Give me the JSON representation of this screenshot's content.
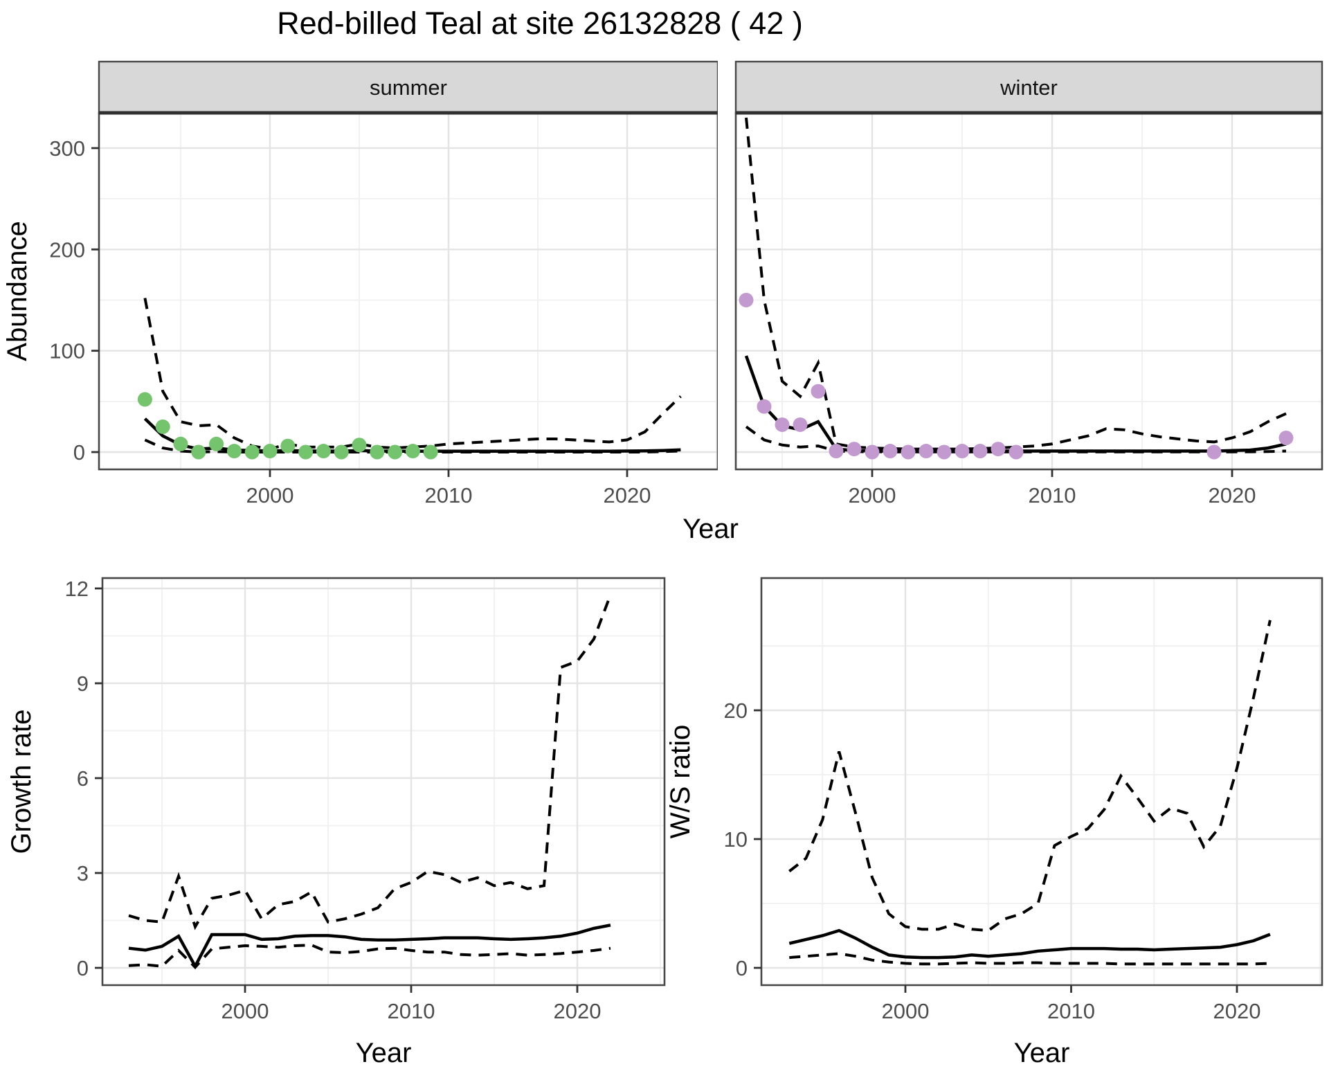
{
  "title": "Red-billed Teal at site 26132828 ( 42 )",
  "top_xlabel": "Year",
  "colors": {
    "summer_point": "#74c36d",
    "winter_point": "#c29ad0",
    "line": "#000000",
    "strip_background": "#d8d8d8",
    "tick_text": "#4d4d4d",
    "panel_border": "#474747"
  },
  "chart_data": [
    {
      "id": "abundance-summer",
      "type": "line",
      "facet_label": "summer",
      "y_axis_title": "Abundance",
      "x_axis_title": null,
      "x_ticks": [
        2000,
        2010,
        2020
      ],
      "x_tick_labels": [
        "2000",
        "2010",
        "2020"
      ],
      "x_minor": [
        1995,
        2005,
        2015,
        2025
      ],
      "y_ticks": [
        0,
        100,
        200,
        300
      ],
      "y_tick_labels": [
        "0",
        "100",
        "200",
        "300"
      ],
      "y_minor": [
        50,
        150,
        250
      ],
      "xlim": [
        1990.4,
        2025.1
      ],
      "ylim": [
        -17,
        335
      ],
      "grid": true,
      "legend": "none",
      "series": [
        {
          "name": "lower_ci",
          "style": "dashed",
          "years_start": 1993,
          "values": [
            12,
            4,
            1,
            0,
            0.5,
            0,
            0,
            0,
            0,
            0,
            0,
            0,
            0,
            0,
            0,
            0,
            0,
            0,
            0,
            0,
            0,
            0,
            0,
            0,
            0,
            0,
            0,
            0,
            0,
            0.5,
            1
          ]
        },
        {
          "name": "upper_ci",
          "style": "dashed",
          "years_start": 1993,
          "values": [
            152,
            60,
            30,
            26,
            27,
            14,
            6,
            3,
            8,
            5,
            5,
            5,
            8,
            5,
            4,
            5,
            6,
            8,
            9,
            10,
            11,
            12,
            13,
            13,
            12,
            11,
            10,
            12,
            20,
            38,
            55
          ]
        },
        {
          "name": "median",
          "style": "solid",
          "years_start": 1993,
          "values": [
            33,
            16,
            7,
            3,
            4,
            2,
            1.5,
            1,
            1.5,
            1,
            1,
            1,
            1.5,
            1,
            0.8,
            0.8,
            0.8,
            0.8,
            0.8,
            0.8,
            0.8,
            0.8,
            0.8,
            0.8,
            0.8,
            0.8,
            0.9,
            1,
            1.2,
            1.6,
            2.2
          ]
        }
      ],
      "points": {
        "name": "observed_counts",
        "color": "#74c36d",
        "years": [
          1993,
          1994,
          1995,
          1996,
          1997,
          1998,
          1999,
          2000,
          2001,
          2002,
          2003,
          2004,
          2005,
          2006,
          2007,
          2008,
          2009
        ],
        "values": [
          52,
          25,
          8,
          0,
          8,
          1,
          0,
          1,
          6,
          0,
          1,
          0,
          7,
          0,
          0,
          1,
          0
        ]
      }
    },
    {
      "id": "abundance-winter",
      "type": "line",
      "facet_label": "winter",
      "y_axis_title": null,
      "x_axis_title": null,
      "x_ticks": [
        2000,
        2010,
        2020
      ],
      "x_tick_labels": [
        "2000",
        "2010",
        "2020"
      ],
      "x_minor": [
        1995,
        2005,
        2015,
        2025
      ],
      "y_ticks": [
        0,
        100,
        200,
        300
      ],
      "y_tick_labels": [
        "0",
        "100",
        "200",
        "300"
      ],
      "y_minor": [
        50,
        150,
        250
      ],
      "xlim": [
        1992.4,
        2025.0
      ],
      "ylim": [
        -17,
        335
      ],
      "grid": true,
      "legend": "none",
      "series": [
        {
          "name": "lower_ci",
          "style": "dashed",
          "years_start": 1993,
          "values": [
            25,
            12,
            7,
            5,
            6,
            1,
            0.5,
            0.3,
            0.2,
            0.2,
            0.2,
            0.2,
            0.2,
            0.2,
            0.2,
            0.2,
            0.2,
            0.2,
            0.2,
            0.2,
            0.2,
            0.2,
            0.2,
            0.2,
            0.2,
            0.2,
            0.2,
            0.2,
            0.3,
            0.5,
            1
          ]
        },
        {
          "name": "upper_ci",
          "style": "dashed",
          "years_start": 1993,
          "values": [
            330,
            150,
            70,
            55,
            88,
            8,
            5,
            4,
            3.5,
            3,
            3,
            3,
            3,
            3.5,
            4,
            5,
            6,
            8,
            12,
            16,
            23,
            22,
            18,
            15,
            13,
            11,
            10,
            14,
            20,
            30,
            38
          ]
        },
        {
          "name": "median",
          "style": "solid",
          "years_start": 1993,
          "values": [
            95,
            45,
            26,
            22,
            30,
            3,
            1.5,
            1,
            1,
            1,
            1,
            1,
            1,
            1,
            1,
            1,
            1,
            1,
            1,
            1,
            1,
            1,
            1,
            1,
            1,
            1,
            1,
            1.5,
            2,
            4,
            8
          ]
        }
      ],
      "points": {
        "name": "observed_counts",
        "color": "#c29ad0",
        "years": [
          1993,
          1994,
          1995,
          1996,
          1997,
          1998,
          1999,
          2000,
          2001,
          2002,
          2003,
          2004,
          2005,
          2006,
          2007,
          2008,
          2019,
          2023
        ],
        "values": [
          150,
          45,
          27,
          27,
          60,
          1,
          3,
          0,
          1,
          0,
          1,
          0,
          1,
          1,
          3,
          0,
          0,
          14
        ]
      }
    },
    {
      "id": "growth-rate",
      "type": "line",
      "facet_label": null,
      "y_axis_title": "Growth rate",
      "x_axis_title": "Year",
      "x_ticks": [
        2000,
        2010,
        2020
      ],
      "x_tick_labels": [
        "2000",
        "2010",
        "2020"
      ],
      "x_minor": [
        1995,
        2005,
        2015,
        2025
      ],
      "y_ticks": [
        0,
        3,
        6,
        9,
        12
      ],
      "y_tick_labels": [
        "0",
        "3",
        "6",
        "9",
        "12"
      ],
      "y_minor": [
        1.5,
        4.5,
        7.5,
        10.5
      ],
      "xlim": [
        1991.4,
        2025.3
      ],
      "ylim": [
        -0.55,
        12.35
      ],
      "grid": true,
      "legend": "none",
      "series": [
        {
          "name": "lower_ci",
          "style": "dashed",
          "years_start": 1993,
          "values": [
            0.07,
            0.1,
            0.05,
            0.55,
            0.02,
            0.6,
            0.65,
            0.7,
            0.68,
            0.65,
            0.7,
            0.72,
            0.5,
            0.48,
            0.52,
            0.6,
            0.62,
            0.55,
            0.5,
            0.5,
            0.42,
            0.4,
            0.42,
            0.45,
            0.4,
            0.42,
            0.45,
            0.5,
            0.55,
            0.62
          ]
        },
        {
          "name": "upper_ci",
          "style": "dashed",
          "years_start": 1993,
          "values": [
            1.65,
            1.5,
            1.45,
            2.9,
            1.3,
            2.2,
            2.3,
            2.45,
            1.55,
            2.0,
            2.1,
            2.4,
            1.45,
            1.55,
            1.7,
            1.9,
            2.5,
            2.7,
            3.05,
            2.95,
            2.7,
            2.85,
            2.6,
            2.7,
            2.5,
            2.6,
            9.5,
            9.7,
            10.4,
            11.8
          ]
        },
        {
          "name": "median",
          "style": "solid",
          "years_start": 1993,
          "values": [
            0.62,
            0.56,
            0.68,
            1.0,
            0.05,
            1.05,
            1.05,
            1.05,
            0.9,
            0.92,
            1.0,
            1.02,
            1.02,
            0.98,
            0.9,
            0.88,
            0.88,
            0.9,
            0.92,
            0.95,
            0.95,
            0.95,
            0.92,
            0.9,
            0.92,
            0.95,
            1.0,
            1.1,
            1.25,
            1.35
          ]
        }
      ],
      "points": null
    },
    {
      "id": "ws-ratio",
      "type": "line",
      "facet_label": null,
      "y_axis_title": "W/S ratio",
      "x_axis_title": "Year",
      "x_ticks": [
        2000,
        2010,
        2020
      ],
      "x_tick_labels": [
        "2000",
        "2010",
        "2020"
      ],
      "x_minor": [
        1995,
        2005,
        2015,
        2025
      ],
      "y_ticks": [
        0,
        10,
        20
      ],
      "y_tick_labels": [
        "0",
        "10",
        "20"
      ],
      "y_minor": [
        5,
        15,
        25
      ],
      "xlim": [
        1991.3,
        2025.1
      ],
      "ylim": [
        -1.35,
        30.3
      ],
      "grid": true,
      "legend": "none",
      "series": [
        {
          "name": "lower_ci",
          "style": "dashed",
          "years_start": 1993,
          "values": [
            0.8,
            0.9,
            1.0,
            1.1,
            0.9,
            0.6,
            0.45,
            0.35,
            0.3,
            0.3,
            0.35,
            0.4,
            0.35,
            0.35,
            0.4,
            0.4,
            0.35,
            0.35,
            0.35,
            0.35,
            0.3,
            0.3,
            0.3,
            0.3,
            0.3,
            0.3,
            0.3,
            0.3,
            0.3,
            0.35
          ]
        },
        {
          "name": "upper_ci",
          "style": "dashed",
          "years_start": 1993,
          "values": [
            7.5,
            8.5,
            11.5,
            16.8,
            12,
            7,
            4.2,
            3.2,
            3.0,
            3.0,
            3.4,
            3.0,
            2.9,
            3.8,
            4.2,
            5.0,
            9.5,
            10.2,
            10.8,
            12.3,
            14.9,
            13.2,
            11.4,
            12.4,
            12.0,
            9.4,
            11.0,
            15.5,
            21,
            27
          ]
        },
        {
          "name": "median",
          "style": "solid",
          "years_start": 1993,
          "values": [
            1.9,
            2.2,
            2.5,
            2.9,
            2.3,
            1.6,
            1.0,
            0.85,
            0.8,
            0.8,
            0.85,
            1.0,
            0.9,
            1.0,
            1.1,
            1.3,
            1.4,
            1.5,
            1.5,
            1.5,
            1.45,
            1.45,
            1.4,
            1.45,
            1.5,
            1.55,
            1.6,
            1.8,
            2.1,
            2.6
          ]
        }
      ],
      "points": null
    }
  ]
}
